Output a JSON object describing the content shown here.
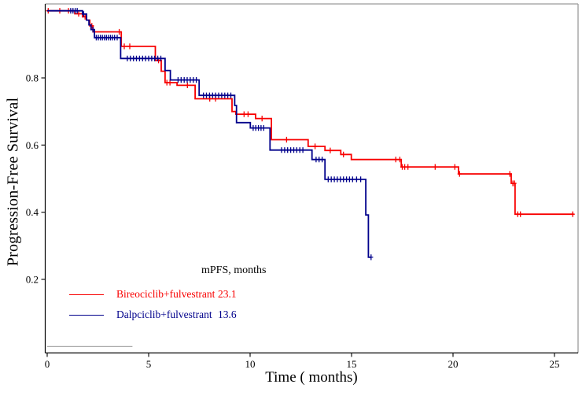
{
  "chart_data": {
    "type": "line",
    "subtype": "kaplan-meier-step",
    "title": "",
    "xlabel": "Time ( months)",
    "ylabel": "Progression-Free Survival",
    "xlim": [
      0,
      26.2
    ],
    "ylim": [
      0,
      1.02
    ],
    "x_ticks": [
      0,
      5,
      10,
      15,
      20,
      25
    ],
    "y_ticks": [
      0.2,
      0.4,
      0.6,
      0.8
    ],
    "grid": false,
    "axis_color": "#000000",
    "box_color": "#9b9b9b",
    "baseline_segment": {
      "x_start": 0,
      "x_end": 4.2,
      "value": 0.0,
      "color": "#a9a9a9"
    },
    "legend": {
      "header": "mPFS, months",
      "position": "inside-bottom-left",
      "entries": [
        {
          "label": "Bireociclib+fulvestrant",
          "value": "23.1",
          "color": "#f80000"
        },
        {
          "label": "Dalpciclib+fulvestrant",
          "value": "13.6",
          "color": "#00008b"
        }
      ]
    },
    "series": [
      {
        "name": "Bireociclib+fulvestrant",
        "mpfs_months": 23.1,
        "color": "#f80000",
        "steps": [
          [
            0,
            1.0
          ],
          [
            1.36,
            0.991
          ],
          [
            1.74,
            0.982
          ],
          [
            1.94,
            0.972
          ],
          [
            2.1,
            0.955
          ],
          [
            2.26,
            0.937
          ],
          [
            3.65,
            0.894
          ],
          [
            5.33,
            0.852
          ],
          [
            5.62,
            0.82
          ],
          [
            5.81,
            0.786
          ],
          [
            6.4,
            0.778
          ],
          [
            7.29,
            0.738
          ],
          [
            9.11,
            0.7
          ],
          [
            9.3,
            0.692
          ],
          [
            10.27,
            0.679
          ],
          [
            11.05,
            0.616
          ],
          [
            12.86,
            0.596
          ],
          [
            13.69,
            0.584
          ],
          [
            14.47,
            0.572
          ],
          [
            14.99,
            0.557
          ],
          [
            17.45,
            0.535
          ],
          [
            20.27,
            0.514
          ],
          [
            22.87,
            0.486
          ],
          [
            23.06,
            0.394
          ],
          [
            25.95,
            0.394
          ]
        ],
        "censors": [
          [
            0.05,
            1.0
          ],
          [
            0.62,
            1.0
          ],
          [
            1.05,
            1.0
          ],
          [
            1.55,
            0.991
          ],
          [
            1.87,
            0.982
          ],
          [
            2.2,
            0.955
          ],
          [
            3.55,
            0.937
          ],
          [
            3.8,
            0.894
          ],
          [
            4.07,
            0.894
          ],
          [
            5.49,
            0.852
          ],
          [
            5.9,
            0.786
          ],
          [
            6.05,
            0.786
          ],
          [
            6.91,
            0.778
          ],
          [
            8.01,
            0.738
          ],
          [
            8.3,
            0.738
          ],
          [
            9.7,
            0.692
          ],
          [
            9.9,
            0.692
          ],
          [
            10.59,
            0.679
          ],
          [
            11.8,
            0.616
          ],
          [
            13.2,
            0.596
          ],
          [
            13.95,
            0.584
          ],
          [
            14.6,
            0.572
          ],
          [
            17.18,
            0.557
          ],
          [
            17.38,
            0.557
          ],
          [
            17.5,
            0.535
          ],
          [
            17.62,
            0.535
          ],
          [
            17.78,
            0.535
          ],
          [
            19.12,
            0.535
          ],
          [
            20.09,
            0.535
          ],
          [
            20.32,
            0.514
          ],
          [
            22.8,
            0.514
          ],
          [
            22.95,
            0.486
          ],
          [
            23.03,
            0.486
          ],
          [
            23.19,
            0.394
          ],
          [
            23.32,
            0.394
          ],
          [
            25.9,
            0.394
          ]
        ]
      },
      {
        "name": "Dalpciclib+fulvestrant",
        "mpfs_months": 13.6,
        "color": "#00008b",
        "steps": [
          [
            0,
            1.0
          ],
          [
            1.74,
            0.99
          ],
          [
            1.94,
            0.972
          ],
          [
            2.06,
            0.958
          ],
          [
            2.16,
            0.944
          ],
          [
            2.33,
            0.92
          ],
          [
            3.62,
            0.858
          ],
          [
            5.81,
            0.822
          ],
          [
            6.07,
            0.794
          ],
          [
            7.49,
            0.748
          ],
          [
            9.24,
            0.718
          ],
          [
            9.33,
            0.667
          ],
          [
            10.01,
            0.651
          ],
          [
            10.98,
            0.585
          ],
          [
            13.05,
            0.557
          ],
          [
            13.69,
            0.498
          ],
          [
            15.7,
            0.392
          ],
          [
            15.83,
            0.266
          ],
          [
            15.96,
            0.266
          ]
        ],
        "censors": [
          [
            1.16,
            1.0
          ],
          [
            1.27,
            1.0
          ],
          [
            1.38,
            1.0
          ],
          [
            1.48,
            1.0
          ],
          [
            1.8,
            0.99
          ],
          [
            2.25,
            0.944
          ],
          [
            2.42,
            0.92
          ],
          [
            2.52,
            0.92
          ],
          [
            2.62,
            0.92
          ],
          [
            2.72,
            0.92
          ],
          [
            2.82,
            0.92
          ],
          [
            2.92,
            0.92
          ],
          [
            3.02,
            0.92
          ],
          [
            3.12,
            0.92
          ],
          [
            3.22,
            0.92
          ],
          [
            3.32,
            0.92
          ],
          [
            3.45,
            0.92
          ],
          [
            3.95,
            0.858
          ],
          [
            4.1,
            0.858
          ],
          [
            4.25,
            0.858
          ],
          [
            4.4,
            0.858
          ],
          [
            4.55,
            0.858
          ],
          [
            4.7,
            0.858
          ],
          [
            4.85,
            0.858
          ],
          [
            5.0,
            0.858
          ],
          [
            5.15,
            0.858
          ],
          [
            5.3,
            0.858
          ],
          [
            5.45,
            0.858
          ],
          [
            5.6,
            0.858
          ],
          [
            6.45,
            0.794
          ],
          [
            6.6,
            0.794
          ],
          [
            6.75,
            0.794
          ],
          [
            6.9,
            0.794
          ],
          [
            7.05,
            0.794
          ],
          [
            7.2,
            0.794
          ],
          [
            7.35,
            0.794
          ],
          [
            7.7,
            0.748
          ],
          [
            7.85,
            0.748
          ],
          [
            8.0,
            0.748
          ],
          [
            8.15,
            0.748
          ],
          [
            8.3,
            0.748
          ],
          [
            8.45,
            0.748
          ],
          [
            8.6,
            0.748
          ],
          [
            8.75,
            0.748
          ],
          [
            8.9,
            0.748
          ],
          [
            9.05,
            0.748
          ],
          [
            10.15,
            0.651
          ],
          [
            10.28,
            0.651
          ],
          [
            10.41,
            0.651
          ],
          [
            10.54,
            0.651
          ],
          [
            10.67,
            0.651
          ],
          [
            11.55,
            0.585
          ],
          [
            11.7,
            0.585
          ],
          [
            11.85,
            0.585
          ],
          [
            12.0,
            0.585
          ],
          [
            12.15,
            0.585
          ],
          [
            12.3,
            0.585
          ],
          [
            12.45,
            0.585
          ],
          [
            12.6,
            0.585
          ],
          [
            13.25,
            0.557
          ],
          [
            13.4,
            0.557
          ],
          [
            13.55,
            0.557
          ],
          [
            13.85,
            0.498
          ],
          [
            14.0,
            0.498
          ],
          [
            14.15,
            0.498
          ],
          [
            14.3,
            0.498
          ],
          [
            14.45,
            0.498
          ],
          [
            14.6,
            0.498
          ],
          [
            14.75,
            0.498
          ],
          [
            14.9,
            0.498
          ],
          [
            15.05,
            0.498
          ],
          [
            15.25,
            0.498
          ],
          [
            15.45,
            0.498
          ],
          [
            15.96,
            0.266
          ]
        ]
      }
    ]
  }
}
